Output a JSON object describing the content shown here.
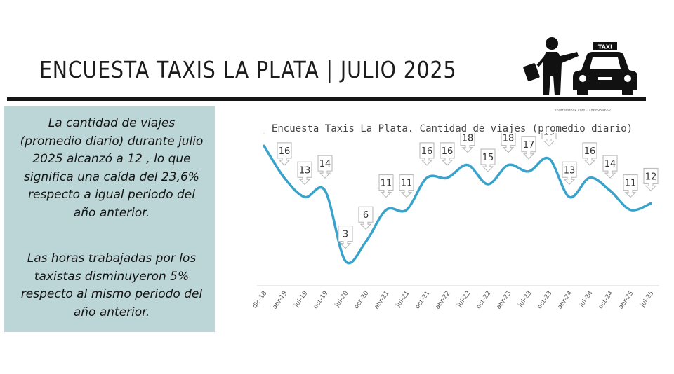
{
  "header": {
    "title": "ENCUESTA TAXIS LA PLATA | JULIO 2025",
    "taxi_sign": "TAXI",
    "watermark": "shutterstock.com · 1868959652"
  },
  "info": {
    "paragraph1": "La cantidad de viajes (promedio diario) durante julio 2025 alcanzó a 12 , lo que significa una caída del 23,6% respecto a igual periodo del año anterior.",
    "paragraph2": "Las horas trabajadas por los taxistas disminuyeron 5% respecto al mismo periodo del año anterior."
  },
  "colors": {
    "line": "#3aa3cc",
    "panel": "#bcd6d7",
    "rule": "#151515"
  },
  "chart_data": {
    "type": "line",
    "title": "Encuesta Taxis La Plata. Cantidad de viajes (promedio diario)",
    "xlabel": "",
    "ylabel": "",
    "categories": [
      "dic-18",
      "abr-19",
      "jul-19",
      "oct-19",
      "jul-20",
      "oct-20",
      "abr-21",
      "jul-21",
      "oct-21",
      "abr-22",
      "jul-22",
      "oct-22",
      "abr-23",
      "jul-23",
      "oct-23",
      "abr-24",
      "jul-24",
      "oct-24",
      "abr-25",
      "jul-25"
    ],
    "series": [
      {
        "values": [
          21,
          16,
          13,
          14,
          3,
          6,
          11,
          11,
          16,
          16,
          18,
          15,
          18,
          17,
          19,
          13,
          16,
          14,
          11,
          12
        ]
      }
    ],
    "ylim": [
      0,
      23
    ],
    "grid": false,
    "legend": "none"
  }
}
